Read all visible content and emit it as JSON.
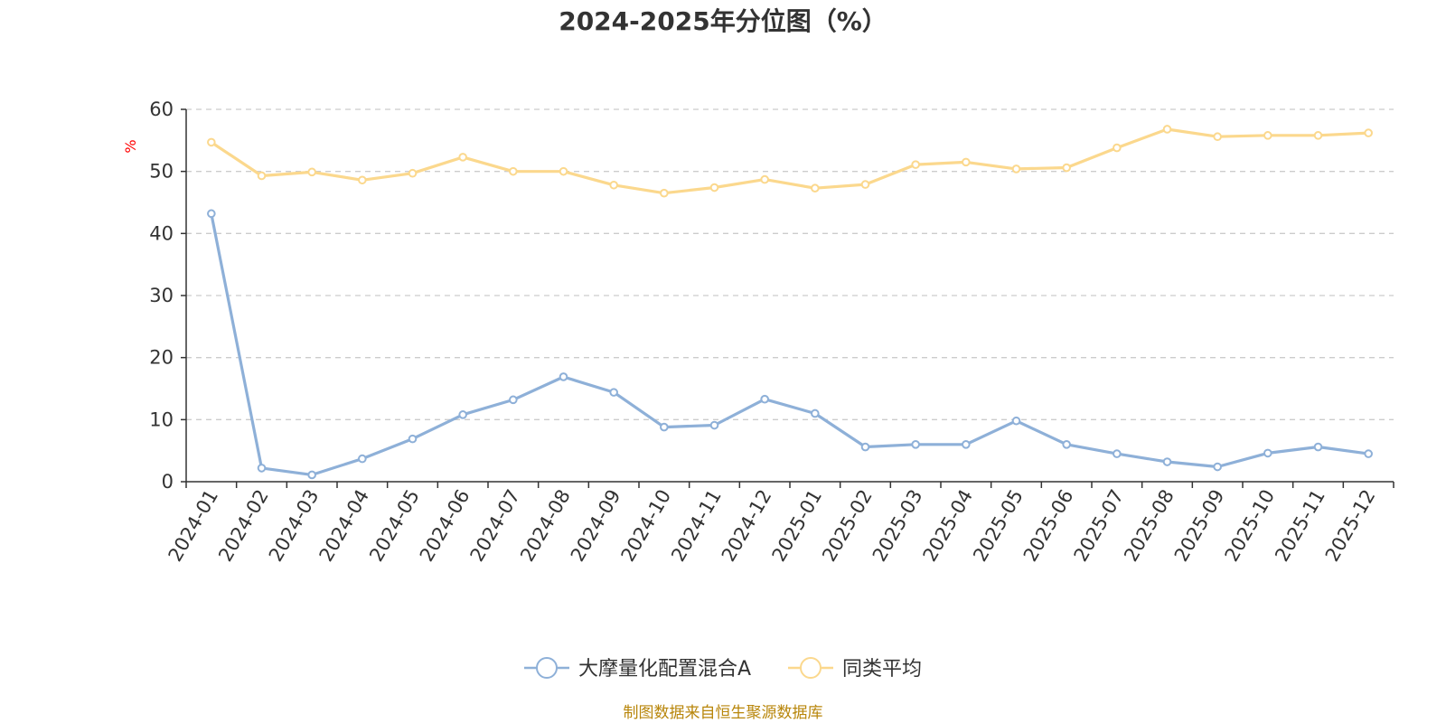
{
  "chart_data": {
    "type": "line",
    "title": "2024-2025年分位图（%）",
    "ylabel": "%",
    "ylim": [
      0,
      60
    ],
    "yticks": [
      0,
      10,
      20,
      30,
      40,
      50,
      60
    ],
    "grid": true,
    "legend_position": "bottom",
    "categories": [
      "2024-01",
      "2024-02",
      "2024-03",
      "2024-04",
      "2024-05",
      "2024-06",
      "2024-07",
      "2024-08",
      "2024-09",
      "2024-10",
      "2024-11",
      "2024-12",
      "2025-01",
      "2025-02",
      "2025-03",
      "2025-04",
      "2025-05",
      "2025-06",
      "2025-07",
      "2025-08",
      "2025-09",
      "2025-10",
      "2025-11",
      "2025-12"
    ],
    "series": [
      {
        "name": "大摩量化配置混合A",
        "color": "#8eb0d8",
        "values": [
          43.2,
          2.2,
          1.1,
          3.7,
          6.9,
          10.8,
          13.2,
          16.9,
          14.4,
          8.8,
          9.1,
          13.3,
          11.0,
          5.6,
          6.0,
          6.0,
          9.8,
          6.0,
          4.5,
          3.2,
          2.4,
          4.6,
          5.6,
          4.5
        ]
      },
      {
        "name": "同类平均",
        "color": "#fbd88d",
        "values": [
          54.7,
          49.3,
          49.9,
          48.6,
          49.7,
          52.3,
          50.0,
          50.0,
          47.8,
          46.5,
          47.4,
          48.7,
          47.3,
          47.9,
          51.1,
          51.5,
          50.4,
          50.6,
          53.8,
          56.8,
          55.6,
          55.8,
          55.8,
          56.2
        ]
      }
    ],
    "source": "制图数据来自恒生聚源数据库"
  }
}
